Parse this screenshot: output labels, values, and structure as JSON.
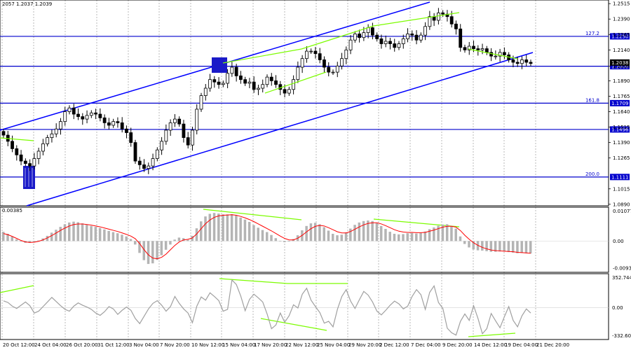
{
  "header": {
    "symbol_quote": "2057 1.2037 1.2039"
  },
  "colors": {
    "background": "#ffffff",
    "candle": "#000000",
    "level_line": "#0000cc",
    "level_label_bg": "#0000cc",
    "channel": "#0000ff",
    "divergence": "#7cfc00",
    "signal": "#ff0000",
    "histogram": "#b4b4b4",
    "cci": "#a0a0a0",
    "marker": "#0000cc",
    "grid": "#8c8c8c"
  },
  "chart_data": [
    {
      "type": "candlestick",
      "panel": "price",
      "ylim": [
        1.0889,
        1.2533
      ],
      "y_ticks": [
        "1.2515",
        "1.2390",
        "1.2265",
        "1.2140",
        "1.2008",
        "1.1890",
        "1.1765",
        "1.1640",
        "1.1515",
        "1.1390",
        "1.1265",
        "1.1015",
        "1.0890"
      ],
      "current_price": {
        "value": 1.2038,
        "label": "1.2038"
      },
      "levels": [
        {
          "name": "127.2",
          "value": 1.225,
          "label": "1.2250",
          "fib_label": "127.2"
        },
        {
          "name": "level-1.2008",
          "value": 1.2008,
          "label": "1.2008",
          "fib_label": ""
        },
        {
          "name": "161.8",
          "value": 1.1709,
          "label": "1.1709",
          "fib_label": "161.8"
        },
        {
          "name": "level-1.1496",
          "value": 1.1496,
          "label": "1.1496",
          "fib_label": ""
        },
        {
          "name": "200.0",
          "value": 1.1111,
          "label": "1.1111",
          "fib_label": "200.0"
        }
      ],
      "x_labels": [
        "20 Oct 12:00",
        "24 Oct 04:00",
        "26 Oct 20:00",
        "31 Oct 12:00",
        "3 Nov 04:00",
        "7 Nov 20:00",
        "10 Nov 12:00",
        "15 Nov 04:00",
        "17 Nov 20:00",
        "22 Nov 12:00",
        "25 Nov 04:00",
        "29 Nov 20:00",
        "2 Dec 12:00",
        "7 Dec 04:00",
        "9 Dec 20:00",
        "14 Dec 12:00",
        "19 Dec 04:00",
        "21 Dec 20:00"
      ],
      "close": [
        1.145,
        1.14,
        1.134,
        1.129,
        1.124,
        1.122,
        1.12,
        1.126,
        1.132,
        1.138,
        1.143,
        1.146,
        1.15,
        1.156,
        1.164,
        1.167,
        1.162,
        1.16,
        1.158,
        1.161,
        1.163,
        1.162,
        1.159,
        1.155,
        1.153,
        1.156,
        1.155,
        1.15,
        1.147,
        1.139,
        1.124,
        1.121,
        1.118,
        1.12,
        1.126,
        1.133,
        1.14,
        1.149,
        1.155,
        1.158,
        1.154,
        1.143,
        1.137,
        1.149,
        1.166,
        1.177,
        1.183,
        1.19,
        1.188,
        1.186,
        1.187,
        1.195,
        1.2,
        1.193,
        1.19,
        1.187,
        1.188,
        1.182,
        1.183,
        1.186,
        1.192,
        1.189,
        1.186,
        1.182,
        1.179,
        1.182,
        1.19,
        1.2,
        1.207,
        1.213,
        1.213,
        1.211,
        1.206,
        1.2,
        1.196,
        1.196,
        1.201,
        1.207,
        1.214,
        1.222,
        1.227,
        1.224,
        1.228,
        1.232,
        1.226,
        1.223,
        1.219,
        1.221,
        1.219,
        1.216,
        1.219,
        1.223,
        1.227,
        1.226,
        1.222,
        1.226,
        1.233,
        1.241,
        1.238,
        1.244,
        1.243,
        1.241,
        1.235,
        1.231,
        1.216,
        1.214,
        1.217,
        1.215,
        1.214,
        1.215,
        1.212,
        1.209,
        1.209,
        1.212,
        1.21,
        1.206,
        1.204,
        1.203,
        1.206,
        1.204,
        1.203
      ]
    },
    {
      "type": "histogram",
      "panel": "oscillator-1",
      "y_ticks": [
        "0.01077",
        "0.00",
        "-0.00931"
      ],
      "top_left_label": "0.00385",
      "ylim": [
        -0.0103,
        0.0112
      ],
      "values": [
        0.0032,
        0.0025,
        0.0015,
        0.0006,
        -0.0002,
        -0.0006,
        -0.0006,
        -0.0003,
        0.0002,
        0.0009,
        0.0018,
        0.0029,
        0.0039,
        0.0049,
        0.0058,
        0.0064,
        0.0067,
        0.0065,
        0.0061,
        0.0056,
        0.0052,
        0.0049,
        0.0045,
        0.004,
        0.0035,
        0.0031,
        0.0027,
        0.0022,
        0.0016,
        0.0007,
        -0.0012,
        -0.0041,
        -0.0066,
        -0.0079,
        -0.0077,
        -0.0065,
        -0.0049,
        -0.003,
        -0.0012,
        0.0005,
        0.0012,
        0.001,
        0.0004,
        0.0018,
        0.0044,
        0.0068,
        0.0085,
        0.0094,
        0.0097,
        0.0095,
        0.0092,
        0.0092,
        0.0093,
        0.0088,
        0.0081,
        0.0074,
        0.0066,
        0.0055,
        0.0046,
        0.0038,
        0.0031,
        0.0021,
        0.001,
        0.0001,
        -0.0004,
        -0.0001,
        0.0007,
        0.002,
        0.0037,
        0.0052,
        0.0061,
        0.0063,
        0.0058,
        0.0048,
        0.0036,
        0.0025,
        0.002,
        0.0022,
        0.003,
        0.0043,
        0.0056,
        0.0064,
        0.0069,
        0.0071,
        0.0069,
        0.0062,
        0.0052,
        0.0042,
        0.0032,
        0.0025,
        0.0023,
        0.0024,
        0.0027,
        0.0028,
        0.0026,
        0.0028,
        0.0033,
        0.0041,
        0.0047,
        0.0053,
        0.0057,
        0.0058,
        0.0052,
        0.0043,
        0.0016,
        -0.001,
        -0.0022,
        -0.0029,
        -0.0032,
        -0.0033,
        -0.0035,
        -0.0037,
        -0.0037,
        -0.0036,
        -0.0036,
        -0.0038,
        -0.004,
        -0.0042,
        -0.0041,
        -0.0042,
        -0.0043
      ],
      "signal": [
        0.0026,
        0.0022,
        0.0016,
        0.0009,
        0.0002,
        -0.0003,
        -0.0005,
        -0.0004,
        -0.0001,
        0.0004,
        0.0011,
        0.0019,
        0.0028,
        0.0037,
        0.0045,
        0.0052,
        0.0057,
        0.0059,
        0.0059,
        0.0057,
        0.0055,
        0.0052,
        0.0049,
        0.0045,
        0.0041,
        0.0037,
        0.0033,
        0.0028,
        0.0023,
        0.0017,
        0.0008,
        -0.0009,
        -0.003,
        -0.0048,
        -0.0059,
        -0.0061,
        -0.0056,
        -0.0045,
        -0.003,
        -0.0015,
        -0.0003,
        0.0004,
        0.0006,
        0.0011,
        0.0025,
        0.0043,
        0.006,
        0.0073,
        0.0082,
        0.0087,
        0.0089,
        0.009,
        0.0091,
        0.0089,
        0.0085,
        0.008,
        0.0074,
        0.0067,
        0.0059,
        0.0051,
        0.0043,
        0.0035,
        0.0026,
        0.0017,
        0.0009,
        0.0004,
        0.0004,
        0.001,
        0.002,
        0.0032,
        0.0043,
        0.0051,
        0.0054,
        0.0052,
        0.0046,
        0.0039,
        0.0032,
        0.0028,
        0.0028,
        0.0033,
        0.0041,
        0.0049,
        0.0056,
        0.0061,
        0.0063,
        0.0063,
        0.0059,
        0.0053,
        0.0046,
        0.0039,
        0.0034,
        0.0031,
        0.003,
        0.003,
        0.0029,
        0.0029,
        0.003,
        0.0034,
        0.0038,
        0.0043,
        0.0048,
        0.0051,
        0.0051,
        0.0048,
        0.0036,
        0.002,
        0.0006,
        -0.0006,
        -0.0015,
        -0.0022,
        -0.0027,
        -0.0031,
        -0.0033,
        -0.0034,
        -0.0035,
        -0.0036,
        -0.0037,
        -0.0039,
        -0.004,
        -0.0041,
        -0.0042
      ]
    },
    {
      "type": "line",
      "panel": "oscillator-2",
      "y_ticks": [
        "352.7446",
        "0.00",
        "-332.6073"
      ],
      "ylim": [
        -332.6073,
        352.7446
      ],
      "values": [
        72,
        55,
        15,
        -10,
        25,
        60,
        20,
        -60,
        -40,
        10,
        60,
        110,
        65,
        20,
        -20,
        -40,
        15,
        50,
        25,
        5,
        -20,
        -60,
        -85,
        -45,
        10,
        -15,
        -75,
        -30,
        5,
        -30,
        -120,
        -175,
        -95,
        -15,
        45,
        75,
        25,
        -40,
        10,
        120,
        45,
        -15,
        -60,
        -165,
        15,
        115,
        80,
        160,
        120,
        75,
        -40,
        -20,
        300,
        250,
        125,
        -35,
        90,
        145,
        105,
        60,
        -70,
        -230,
        -190,
        -60,
        -160,
        -90,
        30,
        -5,
        145,
        210,
        80,
        10,
        -55,
        -170,
        -150,
        -210,
        -20,
        120,
        195,
        70,
        -10,
        85,
        175,
        135,
        60,
        -40,
        -80,
        -30,
        25,
        70,
        40,
        -15,
        15,
        120,
        195,
        140,
        -20,
        165,
        235,
        55,
        -10,
        -225,
        -275,
        -300,
        -150,
        -70,
        -140,
        20,
        -120,
        -285,
        -230,
        -65,
        -145,
        -220,
        -100,
        10,
        -140,
        -210,
        -90,
        -15,
        -60
      ]
    }
  ]
}
